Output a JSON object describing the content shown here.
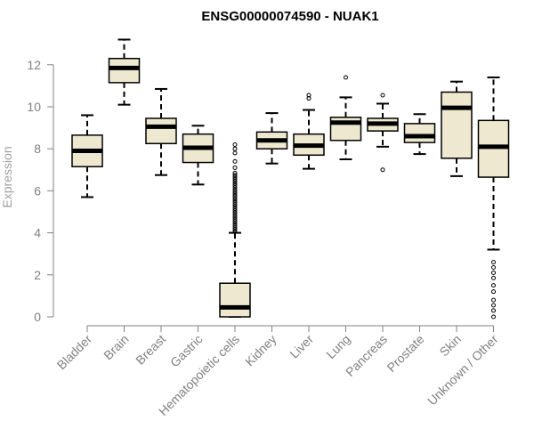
{
  "chart_data": {
    "type": "box",
    "title": "ENSG00000074590 - NUAK1",
    "xlabel": "",
    "ylabel": "Expression",
    "ylim": [
      0,
      13.5
    ],
    "yticks": [
      0,
      2,
      4,
      6,
      8,
      10,
      12
    ],
    "box_fill": "#efe8d0",
    "categories": [
      "Bladder",
      "Brain",
      "Breast",
      "Gastric",
      "Hematopoietic cells",
      "Kidney",
      "Liver",
      "Lung",
      "Pancreas",
      "Prostate",
      "Skin",
      "Unknown / Other"
    ],
    "boxes": [
      {
        "name": "Bladder",
        "whisker_low": 5.7,
        "q1": 7.15,
        "median": 7.9,
        "q3": 8.65,
        "whisker_high": 9.6,
        "outliers": []
      },
      {
        "name": "Brain",
        "whisker_low": 10.1,
        "q1": 11.15,
        "median": 11.85,
        "q3": 12.3,
        "whisker_high": 13.2,
        "outliers": []
      },
      {
        "name": "Breast",
        "whisker_low": 6.75,
        "q1": 8.25,
        "median": 9.05,
        "q3": 9.45,
        "whisker_high": 10.85,
        "outliers": []
      },
      {
        "name": "Gastric",
        "whisker_low": 6.3,
        "q1": 7.35,
        "median": 8.05,
        "q3": 8.7,
        "whisker_high": 9.1,
        "outliers": []
      },
      {
        "name": "Hematopoietic cells",
        "whisker_low": 0.0,
        "q1": 0.0,
        "median": 0.45,
        "q3": 1.6,
        "whisker_high": 4.0,
        "outliers": [
          4.05,
          4.15,
          4.25,
          4.35,
          4.45,
          4.55,
          4.65,
          4.75,
          4.85,
          4.95,
          5.05,
          5.15,
          5.25,
          5.35,
          5.45,
          5.55,
          5.65,
          5.75,
          5.85,
          5.95,
          6.05,
          6.15,
          6.25,
          6.35,
          6.45,
          6.55,
          6.65,
          6.75,
          6.85,
          7.1,
          7.4,
          7.8,
          8.0,
          8.2
        ]
      },
      {
        "name": "Kidney",
        "whisker_low": 7.3,
        "q1": 8.0,
        "median": 8.4,
        "q3": 8.8,
        "whisker_high": 9.7,
        "outliers": []
      },
      {
        "name": "Liver",
        "whisker_low": 7.05,
        "q1": 7.7,
        "median": 8.15,
        "q3": 8.7,
        "whisker_high": 9.85,
        "outliers": [
          10.4,
          10.55
        ]
      },
      {
        "name": "Lung",
        "whisker_low": 7.5,
        "q1": 8.4,
        "median": 9.25,
        "q3": 9.5,
        "whisker_high": 10.45,
        "outliers": [
          11.4
        ]
      },
      {
        "name": "Pancreas",
        "whisker_low": 8.1,
        "q1": 8.85,
        "median": 9.2,
        "q3": 9.45,
        "whisker_high": 10.15,
        "outliers": [
          10.55,
          7.0
        ]
      },
      {
        "name": "Prostate",
        "whisker_low": 7.75,
        "q1": 8.3,
        "median": 8.6,
        "q3": 9.2,
        "whisker_high": 9.65,
        "outliers": []
      },
      {
        "name": "Skin",
        "whisker_low": 6.7,
        "q1": 7.55,
        "median": 9.95,
        "q3": 10.7,
        "whisker_high": 11.2,
        "outliers": []
      },
      {
        "name": "Unknown / Other",
        "whisker_low": 3.2,
        "q1": 6.65,
        "median": 8.1,
        "q3": 9.35,
        "whisker_high": 11.4,
        "outliers": [
          2.6,
          2.35,
          2.1,
          1.85,
          1.5,
          1.2,
          0.8,
          0.55,
          0.3,
          0.0
        ]
      }
    ]
  }
}
